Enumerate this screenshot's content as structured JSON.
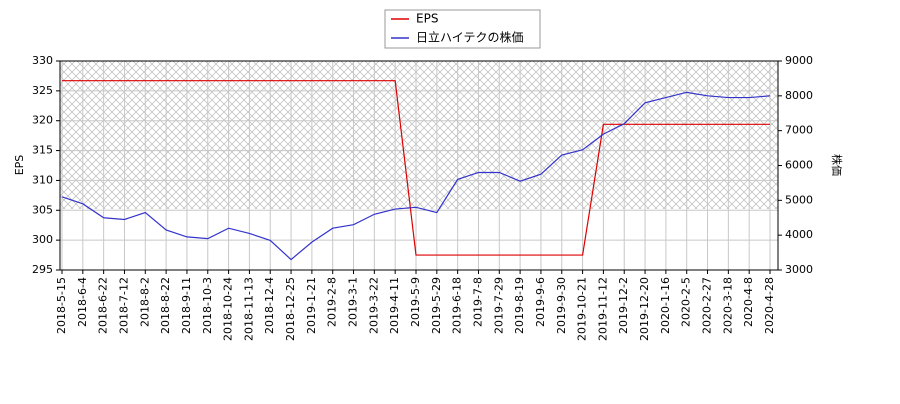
{
  "chart_data": {
    "type": "line",
    "y_label": "EPS",
    "y2_label": "株価",
    "categories": [
      "2018-5-15",
      "2018-6-4",
      "2018-6-22",
      "2018-7-12",
      "2018-8-2",
      "2018-8-22",
      "2018-9-11",
      "2018-10-3",
      "2018-10-24",
      "2018-11-13",
      "2018-12-4",
      "2018-12-25",
      "2019-1-21",
      "2019-2-8",
      "2019-3-1",
      "2019-3-22",
      "2019-4-11",
      "2019-5-9",
      "2019-5-29",
      "2019-6-18",
      "2019-7-8",
      "2019-7-29",
      "2019-8-19",
      "2019-9-6",
      "2019-9-30",
      "2019-10-21",
      "2019-11-12",
      "2019-12-2",
      "2019-12-20",
      "2020-1-16",
      "2020-2-5",
      "2020-2-27",
      "2020-3-18",
      "2020-4-8",
      "2020-4-28"
    ],
    "series": [
      {
        "name": "EPS",
        "color": "#dd0000",
        "values": [
          326.7,
          326.7,
          326.7,
          326.7,
          326.7,
          326.7,
          326.7,
          326.7,
          326.7,
          326.7,
          326.7,
          326.7,
          326.7,
          326.7,
          326.7,
          326.7,
          326.7,
          297.5,
          297.5,
          297.5,
          297.5,
          297.5,
          297.5,
          297.5,
          297.5,
          297.5,
          319.4,
          319.4,
          319.4,
          319.4,
          319.4,
          319.4,
          319.4,
          319.4,
          319.4
        ]
      },
      {
        "name": "日立ハイテクの株価",
        "color": "#3333cc",
        "axis": "y2",
        "values": [
          5100,
          4900,
          4500,
          4450,
          4650,
          4150,
          3950,
          3900,
          4200,
          4050,
          3850,
          3300,
          3800,
          4200,
          4300,
          4600,
          4750,
          4800,
          4650,
          5600,
          5800,
          5800,
          5550,
          5750,
          6300,
          6450,
          6900,
          7200,
          7800,
          7950,
          8100,
          8000,
          7950,
          7950,
          8000
        ]
      }
    ],
    "ylim": [
      295,
      330
    ],
    "yticks": [
      295,
      300,
      305,
      310,
      315,
      320,
      325,
      330
    ],
    "y2lim": [
      3000,
      9000
    ],
    "y2ticks": [
      3000,
      4000,
      5000,
      6000,
      7000,
      8000,
      9000
    ],
    "grid": true,
    "legend": "top"
  }
}
